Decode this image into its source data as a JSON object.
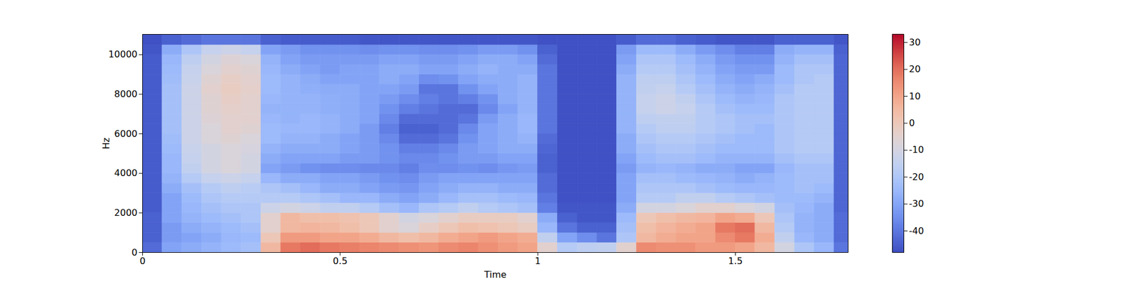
{
  "chart_data": {
    "type": "heatmap",
    "x_label": "Time",
    "y_label": "Hz",
    "color": "coolwarm",
    "xlim": [
      0,
      1.785
    ],
    "xticks": [
      0,
      0.5,
      1,
      1.5
    ],
    "ylim": [
      0,
      11025
    ],
    "yticks": [
      0,
      2000,
      4000,
      6000,
      8000,
      10000
    ],
    "time_bins": [
      0,
      0.05,
      0.1,
      0.15,
      0.2,
      0.25,
      0.3,
      0.35,
      0.4,
      0.45,
      0.5,
      0.55,
      0.6,
      0.65,
      0.7,
      0.75,
      0.8,
      0.85,
      0.9,
      0.95,
      1.0,
      1.05,
      1.1,
      1.15,
      1.2,
      1.25,
      1.3,
      1.35,
      1.4,
      1.45,
      1.5,
      1.55,
      1.6,
      1.65,
      1.7,
      1.75,
      1.785
    ],
    "freq_bins": [
      0,
      500,
      1000,
      1500,
      2000,
      2500,
      3000,
      3500,
      4000,
      4500,
      5000,
      5500,
      6000,
      6500,
      7000,
      7500,
      8000,
      8500,
      9000,
      9500,
      10000,
      10500,
      11025
    ],
    "cells": [
      [
        -42,
        -30,
        -28,
        -26,
        -24,
        -22,
        5,
        18,
        20,
        18,
        17,
        16,
        15,
        14,
        13,
        15,
        16,
        14,
        12,
        10,
        -5,
        -18,
        -16,
        -15,
        -5,
        15,
        14,
        14,
        12,
        12,
        10,
        5,
        -10,
        -20,
        -25,
        -40
      ],
      [
        -44,
        -32,
        -30,
        -28,
        -25,
        -24,
        0,
        12,
        12,
        10,
        10,
        8,
        5,
        3,
        5,
        8,
        10,
        12,
        10,
        8,
        -15,
        -30,
        -35,
        -40,
        -20,
        5,
        8,
        10,
        10,
        15,
        18,
        8,
        -15,
        -25,
        -28,
        -42
      ],
      [
        -44,
        -32,
        -28,
        -26,
        -24,
        -22,
        -5,
        5,
        6,
        5,
        3,
        0,
        -5,
        -8,
        -3,
        0,
        3,
        2,
        0,
        -2,
        -25,
        -40,
        -44,
        -44,
        -22,
        3,
        6,
        8,
        10,
        18,
        20,
        5,
        -18,
        -26,
        -28,
        -42
      ],
      [
        -44,
        -30,
        -26,
        -24,
        -22,
        -20,
        -5,
        5,
        3,
        3,
        2,
        0,
        -5,
        -10,
        -8,
        -5,
        -2,
        -2,
        -2,
        -5,
        -28,
        -44,
        -46,
        -46,
        -24,
        0,
        3,
        5,
        6,
        10,
        8,
        0,
        -20,
        -26,
        -28,
        -42
      ],
      [
        -45,
        -30,
        -25,
        -22,
        -20,
        -20,
        -12,
        -10,
        -12,
        -15,
        -15,
        -18,
        -22,
        -25,
        -20,
        -18,
        -15,
        -18,
        -20,
        -22,
        -38,
        -46,
        -46,
        -46,
        -28,
        -10,
        -10,
        -8,
        -5,
        -5,
        -8,
        -10,
        -22,
        -25,
        -28,
        -43
      ],
      [
        -45,
        -30,
        -24,
        -20,
        -18,
        -18,
        -18,
        -18,
        -20,
        -22,
        -25,
        -25,
        -28,
        -30,
        -28,
        -25,
        -22,
        -22,
        -24,
        -25,
        -40,
        -47,
        -47,
        -47,
        -30,
        -18,
        -18,
        -15,
        -15,
        -18,
        -20,
        -22,
        -24,
        -24,
        -26,
        -43
      ],
      [
        -45,
        -28,
        -22,
        -18,
        -16,
        -17,
        -20,
        -22,
        -25,
        -28,
        -28,
        -30,
        -32,
        -33,
        -30,
        -28,
        -26,
        -26,
        -28,
        -28,
        -42,
        -47,
        -47,
        -47,
        -30,
        -20,
        -20,
        -20,
        -22,
        -24,
        -25,
        -25,
        -24,
        -22,
        -24,
        -43
      ],
      [
        -45,
        -26,
        -18,
        -14,
        -12,
        -14,
        -25,
        -28,
        -28,
        -30,
        -30,
        -32,
        -34,
        -35,
        -32,
        -30,
        -30,
        -30,
        -30,
        -30,
        -42,
        -47,
        -47,
        -47,
        -30,
        -22,
        -22,
        -24,
        -25,
        -26,
        -28,
        -26,
        -24,
        -22,
        -22,
        -43
      ],
      [
        -45,
        -25,
        -15,
        -10,
        -8,
        -10,
        -30,
        -32,
        -34,
        -35,
        -35,
        -36,
        -36,
        -38,
        -35,
        -35,
        -34,
        -35,
        -33,
        -32,
        -44,
        -47,
        -47,
        -47,
        -32,
        -26,
        -25,
        -26,
        -28,
        -28,
        -30,
        -30,
        -25,
        -22,
        -22,
        -43
      ],
      [
        -45,
        -25,
        -14,
        -10,
        -8,
        -10,
        -28,
        -30,
        -30,
        -30,
        -32,
        -32,
        -34,
        -36,
        -36,
        -34,
        -32,
        -32,
        -30,
        -30,
        -44,
        -47,
        -47,
        -47,
        -30,
        -24,
        -22,
        -22,
        -24,
        -26,
        -26,
        -26,
        -22,
        -20,
        -20,
        -43
      ],
      [
        -45,
        -24,
        -13,
        -10,
        -8,
        -9,
        -26,
        -28,
        -28,
        -28,
        -30,
        -32,
        -34,
        -38,
        -38,
        -36,
        -32,
        -30,
        -28,
        -28,
        -43,
        -47,
        -47,
        -47,
        -28,
        -22,
        -20,
        -20,
        -22,
        -24,
        -24,
        -24,
        -20,
        -18,
        -18,
        -43
      ],
      [
        -45,
        -23,
        -12,
        -8,
        -6,
        -8,
        -24,
        -26,
        -26,
        -28,
        -30,
        -32,
        -36,
        -42,
        -42,
        -40,
        -34,
        -30,
        -28,
        -26,
        -42,
        -47,
        -47,
        -47,
        -28,
        -20,
        -18,
        -18,
        -20,
        -22,
        -24,
        -24,
        -20,
        -18,
        -18,
        -43
      ],
      [
        -45,
        -22,
        -12,
        -8,
        -5,
        -6,
        -24,
        -25,
        -25,
        -26,
        -28,
        -32,
        -38,
        -44,
        -44,
        -42,
        -36,
        -30,
        -28,
        -25,
        -40,
        -47,
        -47,
        -47,
        -26,
        -18,
        -16,
        -16,
        -18,
        -20,
        -22,
        -24,
        -20,
        -18,
        -18,
        -43
      ],
      [
        -45,
        -22,
        -12,
        -7,
        -5,
        -5,
        -25,
        -26,
        -25,
        -26,
        -28,
        -30,
        -36,
        -42,
        -42,
        -42,
        -40,
        -32,
        -28,
        -25,
        -40,
        -47,
        -47,
        -47,
        -26,
        -16,
        -15,
        -15,
        -18,
        -20,
        -22,
        -22,
        -20,
        -18,
        -18,
        -43
      ],
      [
        -45,
        -22,
        -12,
        -6,
        -4,
        -5,
        -26,
        -26,
        -26,
        -27,
        -28,
        -30,
        -34,
        -38,
        -40,
        -42,
        -42,
        -36,
        -30,
        -26,
        -40,
        -47,
        -47,
        -47,
        -26,
        -14,
        -12,
        -14,
        -18,
        -22,
        -24,
        -24,
        -20,
        -18,
        -18,
        -43
      ],
      [
        -45,
        -22,
        -12,
        -6,
        -3,
        -5,
        -25,
        -26,
        -26,
        -27,
        -28,
        -30,
        -32,
        -35,
        -38,
        -40,
        -38,
        -34,
        -28,
        -26,
        -40,
        -47,
        -47,
        -47,
        -26,
        -14,
        -12,
        -15,
        -20,
        -24,
        -26,
        -25,
        -20,
        -18,
        -18,
        -43
      ],
      [
        -45,
        -22,
        -12,
        -5,
        -2,
        -4,
        -24,
        -26,
        -27,
        -28,
        -28,
        -30,
        -30,
        -32,
        -40,
        -40,
        -34,
        -30,
        -28,
        -26,
        -40,
        -47,
        -47,
        -47,
        -26,
        -15,
        -14,
        -18,
        -22,
        -26,
        -28,
        -26,
        -22,
        -18,
        -18,
        -43
      ],
      [
        -45,
        -23,
        -13,
        -6,
        -3,
        -5,
        -24,
        -26,
        -28,
        -30,
        -30,
        -30,
        -28,
        -30,
        -35,
        -34,
        -30,
        -28,
        -28,
        -26,
        -40,
        -47,
        -47,
        -47,
        -26,
        -16,
        -16,
        -20,
        -24,
        -28,
        -30,
        -28,
        -24,
        -20,
        -18,
        -43
      ],
      [
        -45,
        -24,
        -14,
        -8,
        -5,
        -6,
        -25,
        -28,
        -30,
        -32,
        -30,
        -30,
        -28,
        -28,
        -30,
        -30,
        -28,
        -26,
        -28,
        -28,
        -40,
        -47,
        -47,
        -47,
        -28,
        -18,
        -18,
        -22,
        -26,
        -30,
        -32,
        -32,
        -24,
        -20,
        -20,
        -43
      ],
      [
        -45,
        -25,
        -16,
        -10,
        -7,
        -8,
        -26,
        -30,
        -32,
        -32,
        -32,
        -32,
        -30,
        -30,
        -32,
        -32,
        -30,
        -28,
        -28,
        -30,
        -42,
        -47,
        -47,
        -47,
        -30,
        -20,
        -20,
        -24,
        -28,
        -32,
        -34,
        -34,
        -26,
        -22,
        -22,
        -43
      ],
      [
        -46,
        -28,
        -20,
        -14,
        -12,
        -14,
        -30,
        -32,
        -34,
        -34,
        -34,
        -35,
        -34,
        -34,
        -35,
        -35,
        -34,
        -32,
        -32,
        -34,
        -44,
        -47,
        -47,
        -47,
        -32,
        -24,
        -24,
        -28,
        -32,
        -35,
        -38,
        -38,
        -28,
        -26,
        -26,
        -44
      ],
      [
        -47,
        -44,
        -42,
        -40,
        -40,
        -40,
        -44,
        -45,
        -45,
        -45,
        -45,
        -46,
        -46,
        -46,
        -46,
        -46,
        -46,
        -46,
        -46,
        -46,
        -47,
        -47,
        -47,
        -47,
        -45,
        -42,
        -42,
        -44,
        -45,
        -46,
        -46,
        -46,
        -44,
        -44,
        -44,
        -46
      ]
    ],
    "colorbar": {
      "range": [
        -48,
        33
      ],
      "ticks": [
        -40,
        -30,
        -20,
        -10,
        0,
        10,
        20,
        30
      ]
    }
  }
}
